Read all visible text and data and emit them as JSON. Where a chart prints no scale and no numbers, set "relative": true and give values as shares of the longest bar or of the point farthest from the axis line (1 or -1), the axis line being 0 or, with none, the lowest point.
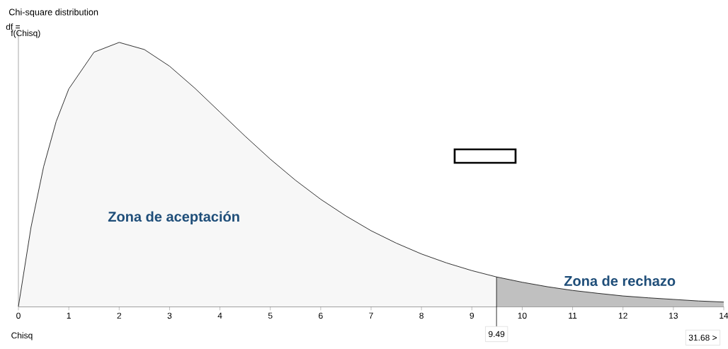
{
  "chart_data": {
    "type": "area",
    "title": "Chi-square distribution",
    "xlabel": "Chisq",
    "ylabel": "f(Chisq)",
    "relative": true,
    "xlim": [
      0,
      14
    ],
    "xticks": [
      0,
      1,
      2,
      3,
      4,
      5,
      6,
      7,
      8,
      9,
      10,
      11,
      12,
      13,
      14
    ],
    "series": [
      {
        "color": "#f7f7f7",
        "x": [
          0,
          0.25,
          0.5,
          0.75,
          1,
          1.5,
          2,
          2.5,
          3,
          3.5,
          4,
          4.5,
          5,
          5.5,
          6,
          6.5,
          7,
          7.5,
          8,
          8.5,
          9,
          9.49
        ],
        "values": [
          0,
          0.3,
          0.529,
          0.701,
          0.824,
          0.963,
          1,
          0.973,
          0.91,
          0.827,
          0.736,
          0.645,
          0.558,
          0.478,
          0.406,
          0.343,
          0.287,
          0.24,
          0.199,
          0.165,
          0.136,
          0.112
        ]
      },
      {
        "color": "#c0c0c0",
        "x": [
          9.49,
          10,
          10.5,
          11,
          11.5,
          12,
          12.5,
          13,
          13.5,
          14
        ],
        "values": [
          0.112,
          0.092,
          0.075,
          0.061,
          0.05,
          0.04,
          0.033,
          0.027,
          0.021,
          0.017
        ]
      }
    ],
    "ref_lines": [
      {
        "axis": "x",
        "value": 9.49,
        "label": "9.49"
      }
    ],
    "annotations": [
      "df =",
      "Zona de aceptación",
      "Zona de rechazo",
      "31.68 >"
    ]
  }
}
